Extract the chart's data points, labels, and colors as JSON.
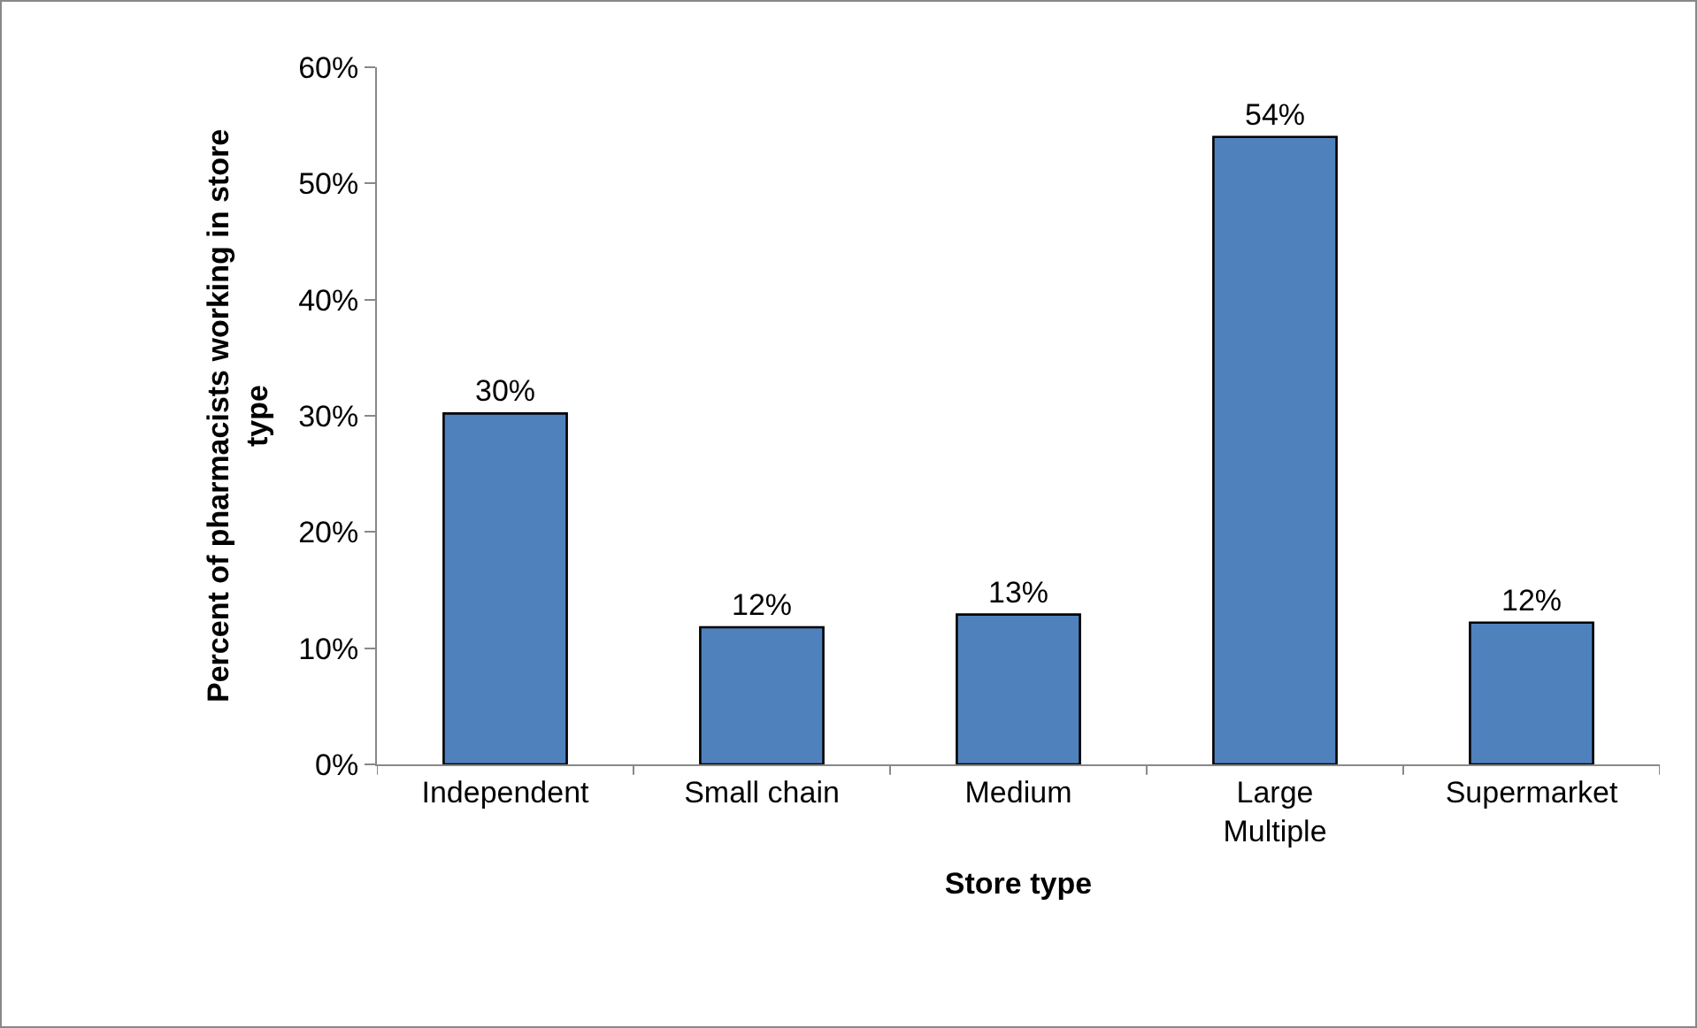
{
  "chart_data": {
    "type": "bar",
    "xlabel": "Store type",
    "ylabel": "Percent of pharmacists working in store type",
    "categories": [
      "Independent",
      "Small chain",
      "Medium",
      "Large Multiple",
      "Supermarket"
    ],
    "values": [
      30.2,
      11.8,
      12.9,
      54,
      12.2
    ],
    "value_labels": [
      "30%",
      "12%",
      "13%",
      "54%",
      "12%"
    ],
    "color": "#4f81bd",
    "ylim": [
      0,
      60
    ],
    "yticks": [
      {
        "value": 0,
        "label": "0%"
      },
      {
        "value": 10,
        "label": "10%"
      },
      {
        "value": 20,
        "label": "20%"
      },
      {
        "value": 30,
        "label": "30%"
      },
      {
        "value": 40,
        "label": "40%"
      },
      {
        "value": 50,
        "label": "50%"
      },
      {
        "value": 60,
        "label": "60%"
      }
    ],
    "grid": false
  }
}
